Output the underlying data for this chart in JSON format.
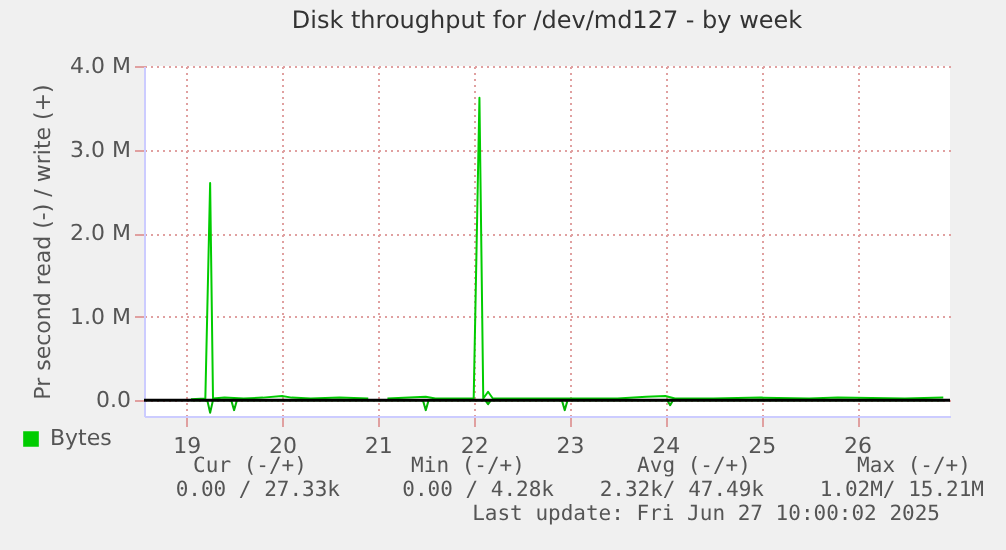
{
  "chart_data": {
    "type": "line",
    "title": "Disk throughput for /dev/md127 - by week",
    "ylabel": "Pr second read (-) / write (+)",
    "xlim": [
      18.56,
      26.97
    ],
    "xticks": [
      19,
      20,
      21,
      22,
      23,
      24,
      25,
      26
    ],
    "ylim": [
      -0.19,
      4.0
    ],
    "yticks": [
      {
        "value": 0,
        "label": "0.0"
      },
      {
        "value": 1,
        "label": "1.0 M"
      },
      {
        "value": 2,
        "label": "2.0 M"
      },
      {
        "value": 3,
        "label": "3.0 M"
      },
      {
        "value": 4,
        "label": "4.0 M"
      }
    ],
    "grid": true,
    "legend": "bottom left",
    "ref_lines": [
      {
        "axis": "y",
        "value": 0,
        "color": "#000000"
      }
    ],
    "series": [
      {
        "name": "Bytes",
        "color": "#00cc00",
        "x": [
          19.05,
          19.2,
          19.25,
          19.28,
          19.4,
          19.6,
          19.8,
          20.0,
          20.1,
          20.3,
          20.6,
          20.9,
          21.0,
          21.1,
          21.5,
          21.6,
          22.0,
          22.06,
          22.1,
          22.15,
          22.2,
          22.5,
          23.0,
          23.5,
          23.8,
          24.0,
          24.1,
          24.5,
          25.0,
          25.5,
          25.8,
          26.5,
          26.9
        ],
        "values": [
          0.01,
          0.02,
          2.6,
          0.02,
          0.03,
          0.02,
          0.03,
          0.05,
          0.03,
          0.02,
          0.03,
          0.02,
          null,
          0.02,
          0.04,
          0.02,
          0.02,
          3.62,
          0.02,
          0.1,
          0.02,
          0.02,
          0.02,
          0.02,
          0.04,
          0.05,
          0.02,
          0.02,
          0.03,
          0.02,
          0.03,
          0.02,
          0.03
        ]
      },
      {
        "color": "#00b400",
        "x": [
          19.05,
          19.22,
          19.25,
          19.28,
          19.47,
          19.5,
          19.53,
          21.47,
          21.5,
          21.53,
          22.12,
          22.15,
          22.18,
          22.92,
          22.95,
          22.98,
          24.02,
          24.05,
          24.08,
          26.9
        ],
        "values": [
          0,
          0,
          -0.15,
          0,
          0,
          -0.12,
          0,
          0,
          -0.12,
          0,
          0,
          -0.05,
          0,
          0,
          -0.12,
          0,
          0,
          -0.06,
          0,
          0
        ]
      }
    ],
    "annotations": [
      "Cur (-/+)",
      "Min (-/+)",
      "Avg (-/+)",
      "Max (-/+)",
      "0.00 / 27.33k",
      "0.00 /   4.28k",
      "2.32k/ 47.49k",
      "1.02M/ 15.21M",
      "Last update: Fri Jun 27 10:00:02 2025"
    ]
  }
}
